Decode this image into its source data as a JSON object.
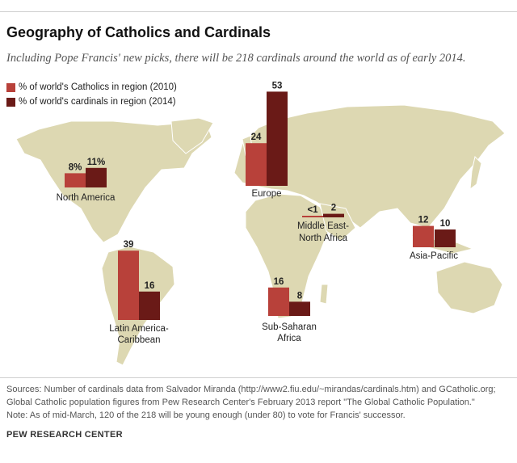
{
  "title": "Geography of Catholics and Cardinals",
  "subtitle": "Including Pope Francis' new picks, there will be 218 cardinals around the world as of early 2014.",
  "colors": {
    "catholics": "#b8413a",
    "cardinals": "#6a1a17",
    "map_land": "#ddd8b2",
    "background": "#ffffff"
  },
  "chart_data": {
    "type": "bar",
    "title": "Geography of Catholics and Cardinals",
    "units": "percent",
    "series": [
      {
        "name": "% of world's Catholics in region (2010)",
        "key": "catholics",
        "values": [
          8,
          24,
          0.5,
          12,
          39,
          16
        ]
      },
      {
        "name": "% of world's cardinals in region (2014)",
        "key": "cardinals",
        "values": [
          11,
          53,
          2,
          10,
          16,
          8
        ]
      }
    ],
    "categories": [
      "North America",
      "Europe",
      "Middle East-North Africa",
      "Asia-Pacific",
      "Latin America-Caribbean",
      "Sub-Saharan Africa"
    ],
    "regions": [
      {
        "name_lines": [
          "North America"
        ],
        "catholics_label": "8%",
        "cardinals_label": "11%"
      },
      {
        "name_lines": [
          "Europe"
        ],
        "catholics_label": "24",
        "cardinals_label": "53"
      },
      {
        "name_lines": [
          "Middle East-",
          "North Africa"
        ],
        "catholics_label": "<1",
        "cardinals_label": "2"
      },
      {
        "name_lines": [
          "Asia-Pacific"
        ],
        "catholics_label": "12",
        "cardinals_label": "10"
      },
      {
        "name_lines": [
          "Latin America-",
          "Caribbean"
        ],
        "catholics_label": "39",
        "cardinals_label": "16"
      },
      {
        "name_lines": [
          "Sub-Saharan",
          "Africa"
        ],
        "catholics_label": "16",
        "cardinals_label": "8"
      }
    ]
  },
  "sources": [
    "Sources: Number of cardinals data from Salvador Miranda (http://www2.fiu.edu/~mirandas/cardinals.htm) and GCatholic.org;",
    "Global Catholic population figures from Pew Research Center's February 2013 report \"The Global Catholic Population.\"",
    "Note: As of mid-March, 120 of the 218 will be young enough (under 80) to vote for Francis' successor."
  ],
  "organization": "PEW RESEARCH CENTER"
}
